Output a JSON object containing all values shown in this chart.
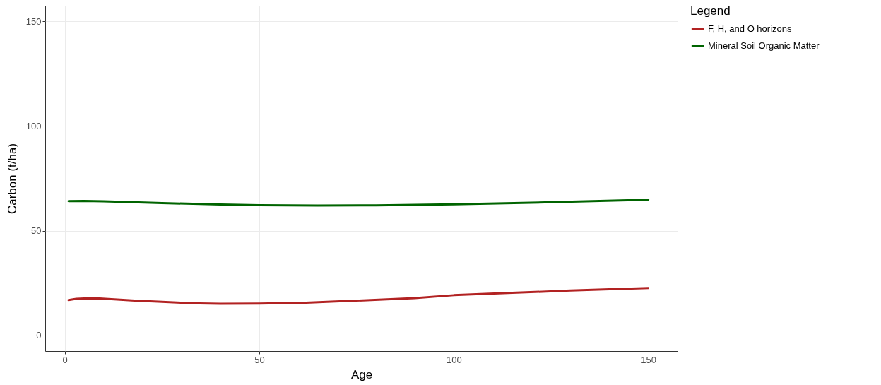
{
  "chart_data": {
    "type": "line",
    "xlabel": "Age",
    "ylabel": "Carbon (t/ha)",
    "legend_title": "Legend",
    "legend": "right",
    "grid": true,
    "line_style": "solid",
    "xlim": [
      -5,
      157.5
    ],
    "ylim": [
      -7.5,
      157.5
    ],
    "xticks": [
      0,
      50,
      100,
      150
    ],
    "yticks": [
      0,
      50,
      100,
      150
    ],
    "series": [
      {
        "name": "F, H, and O horizons",
        "color": "#b22222",
        "x": [
          1,
          3,
          6,
          9,
          12,
          18,
          25,
          32,
          40,
          50,
          62,
          75,
          90,
          100,
          115,
          130,
          150
        ],
        "values": [
          16.9,
          17.5,
          17.7,
          17.6,
          17.3,
          16.6,
          16,
          15.4,
          15.1,
          15.2,
          15.6,
          16.6,
          17.8,
          19.2,
          20.3,
          21.4,
          22.6
        ]
      },
      {
        "name": "Mineral Soil Organic Matter",
        "color": "#006400",
        "x": [
          1,
          5,
          10,
          25,
          40,
          50,
          65,
          80,
          100,
          125,
          150
        ],
        "values": [
          64.1,
          64.2,
          64,
          63.2,
          62.5,
          62.2,
          62,
          62.1,
          62.6,
          63.6,
          64.8
        ]
      }
    ]
  }
}
